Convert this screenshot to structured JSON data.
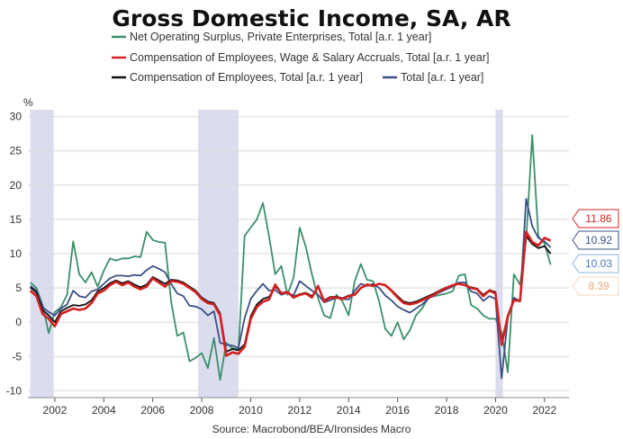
{
  "chart_data": {
    "type": "line",
    "title": "Gross Domestic Income, SA, AR",
    "ylabel": "%",
    "ylim": [
      -11,
      31
    ],
    "xlim": [
      2000.9,
      2023.0
    ],
    "yticks": [
      -10,
      -5,
      0,
      5,
      10,
      15,
      20,
      25,
      30
    ],
    "xticks": [
      2002,
      2004,
      2006,
      2008,
      2010,
      2012,
      2014,
      2016,
      2018,
      2020,
      2022
    ],
    "grid": true,
    "legend_position": "top",
    "source": "Source: Macrobond/BEA/Ironsides Macro",
    "recessions": [
      [
        2001.0,
        2001.95
      ],
      [
        2007.85,
        2009.5
      ],
      [
        2020.0,
        2020.3
      ]
    ],
    "series": [
      {
        "name": "Net Operating Surplus, Private Enterprises, Total [a.r. 1 year]",
        "color": "#3a8f6a",
        "last_value": "8.39",
        "x": [
          2001.0,
          2001.25,
          2001.5,
          2001.75,
          2002.0,
          2002.25,
          2002.5,
          2002.75,
          2003.0,
          2003.25,
          2003.5,
          2003.75,
          2004.0,
          2004.25,
          2004.5,
          2004.75,
          2005.0,
          2005.25,
          2005.5,
          2005.75,
          2006.0,
          2006.25,
          2006.5,
          2006.75,
          2007.0,
          2007.25,
          2007.5,
          2007.75,
          2008.0,
          2008.25,
          2008.5,
          2008.75,
          2009.0,
          2009.25,
          2009.5,
          2009.75,
          2010.0,
          2010.25,
          2010.5,
          2010.75,
          2011.0,
          2011.25,
          2011.5,
          2011.75,
          2012.0,
          2012.25,
          2012.5,
          2012.75,
          2013.0,
          2013.25,
          2013.5,
          2013.75,
          2014.0,
          2014.25,
          2014.5,
          2014.75,
          2015.0,
          2015.25,
          2015.5,
          2015.75,
          2016.0,
          2016.25,
          2016.5,
          2016.75,
          2017.0,
          2017.25,
          2017.5,
          2017.75,
          2018.0,
          2018.25,
          2018.5,
          2018.75,
          2019.0,
          2019.25,
          2019.5,
          2019.75,
          2020.0,
          2020.25,
          2020.5,
          2020.75,
          2021.0,
          2021.25,
          2021.5,
          2021.75,
          2022.0,
          2022.25
        ],
        "y": [
          5.8,
          5.0,
          2.5,
          -1.6,
          1.5,
          2.2,
          4.0,
          11.8,
          7.0,
          5.8,
          7.3,
          5.2,
          7.5,
          9.3,
          9.0,
          9.3,
          9.3,
          9.6,
          9.5,
          13.2,
          12.0,
          11.7,
          11.6,
          3.0,
          -2.0,
          -1.5,
          -5.7,
          -5.2,
          -4.5,
          -6.7,
          -2.3,
          -8.4,
          -3.0,
          -3.8,
          -4.0,
          12.6,
          13.8,
          15.0,
          17.4,
          12.5,
          7.0,
          8.2,
          4.0,
          6.5,
          13.8,
          11.0,
          7.0,
          3.5,
          1.0,
          0.6,
          4.0,
          3.0,
          1.0,
          6.0,
          8.5,
          6.2,
          6.0,
          3.0,
          -1.0,
          -2.0,
          0.0,
          -2.5,
          -1.2,
          1.0,
          2.0,
          3.5,
          3.8,
          4.0,
          4.2,
          4.5,
          6.8,
          7.0,
          2.5,
          2.0,
          1.0,
          0.5,
          0.5,
          -1.5,
          -7.3,
          7.0,
          5.5,
          12.0,
          27.3,
          12.5,
          11.5,
          8.4
        ]
      },
      {
        "name": "Compensation of Employees, Wage & Salary Accruals, Total [a.r. 1 year]",
        "color": "#d42020",
        "last_value": "11.86",
        "x": [
          2001.0,
          2001.25,
          2001.5,
          2001.75,
          2002.0,
          2002.25,
          2002.5,
          2002.75,
          2003.0,
          2003.25,
          2003.5,
          2003.75,
          2004.0,
          2004.25,
          2004.5,
          2004.75,
          2005.0,
          2005.25,
          2005.5,
          2005.75,
          2006.0,
          2006.25,
          2006.5,
          2006.75,
          2007.0,
          2007.25,
          2007.5,
          2007.75,
          2008.0,
          2008.25,
          2008.5,
          2008.75,
          2009.0,
          2009.25,
          2009.5,
          2009.75,
          2010.0,
          2010.25,
          2010.5,
          2010.75,
          2011.0,
          2011.25,
          2011.5,
          2011.75,
          2012.0,
          2012.25,
          2012.5,
          2012.75,
          2013.0,
          2013.25,
          2013.5,
          2013.75,
          2014.0,
          2014.25,
          2014.5,
          2014.75,
          2015.0,
          2015.25,
          2015.5,
          2015.75,
          2016.0,
          2016.25,
          2016.5,
          2016.75,
          2017.0,
          2017.25,
          2017.5,
          2017.75,
          2018.0,
          2018.25,
          2018.5,
          2018.75,
          2019.0,
          2019.25,
          2019.5,
          2019.75,
          2020.0,
          2020.25,
          2020.5,
          2020.75,
          2021.0,
          2021.25,
          2021.5,
          2021.75,
          2022.0,
          2022.25
        ],
        "y": [
          4.6,
          3.8,
          1.2,
          0.5,
          -0.6,
          1.2,
          1.6,
          2.0,
          1.8,
          2.0,
          2.8,
          4.2,
          4.6,
          5.4,
          5.9,
          5.4,
          5.8,
          5.2,
          4.8,
          5.2,
          6.4,
          5.8,
          5.2,
          6.0,
          5.9,
          5.6,
          5.0,
          4.4,
          3.4,
          2.8,
          2.6,
          1.0,
          -4.9,
          -4.4,
          -4.6,
          -3.6,
          0.5,
          2.2,
          3.0,
          3.3,
          5.5,
          4.2,
          4.4,
          3.6,
          4.0,
          4.2,
          3.6,
          5.3,
          3.0,
          3.6,
          3.6,
          3.4,
          3.8,
          4.0,
          5.0,
          5.5,
          5.3,
          5.6,
          5.4,
          4.6,
          3.6,
          2.8,
          2.6,
          2.8,
          3.2,
          3.6,
          4.0,
          4.6,
          5.0,
          5.4,
          5.6,
          5.4,
          5.0,
          4.8,
          3.8,
          4.6,
          4.2,
          -3.3,
          0.8,
          3.2,
          3.1,
          13.2,
          11.7,
          11.2,
          12.3,
          11.9
        ]
      },
      {
        "name": "Compensation of Employees, Total [a.r. 1 year]",
        "color": "#111111",
        "last_value": "10.03",
        "x": [
          2001.0,
          2001.25,
          2001.5,
          2001.75,
          2002.0,
          2002.25,
          2002.5,
          2002.75,
          2003.0,
          2003.25,
          2003.5,
          2003.75,
          2004.0,
          2004.25,
          2004.5,
          2004.75,
          2005.0,
          2005.25,
          2005.5,
          2005.75,
          2006.0,
          2006.25,
          2006.5,
          2006.75,
          2007.0,
          2007.25,
          2007.5,
          2007.75,
          2008.0,
          2008.25,
          2008.5,
          2008.75,
          2009.0,
          2009.25,
          2009.5,
          2009.75,
          2010.0,
          2010.25,
          2010.5,
          2010.75,
          2011.0,
          2011.25,
          2011.5,
          2011.75,
          2012.0,
          2012.25,
          2012.5,
          2012.75,
          2013.0,
          2013.25,
          2013.5,
          2013.75,
          2014.0,
          2014.25,
          2014.5,
          2014.75,
          2015.0,
          2015.25,
          2015.5,
          2015.75,
          2016.0,
          2016.25,
          2016.5,
          2016.75,
          2017.0,
          2017.25,
          2017.5,
          2017.75,
          2018.0,
          2018.25,
          2018.5,
          2018.75,
          2019.0,
          2019.25,
          2019.5,
          2019.75,
          2020.0,
          2020.25,
          2020.5,
          2020.75,
          2021.0,
          2021.25,
          2021.5,
          2021.75,
          2022.0,
          2022.25
        ],
        "y": [
          5.1,
          4.3,
          1.8,
          1.0,
          0.0,
          1.6,
          2.1,
          2.5,
          2.4,
          2.6,
          3.2,
          4.5,
          5.0,
          5.7,
          6.1,
          5.7,
          6.0,
          5.5,
          5.1,
          5.5,
          6.6,
          6.1,
          5.6,
          6.2,
          6.1,
          5.8,
          5.2,
          4.6,
          3.6,
          3.0,
          2.8,
          1.3,
          -4.3,
          -3.9,
          -4.1,
          -3.2,
          0.9,
          2.6,
          3.4,
          3.7,
          5.2,
          4.3,
          4.4,
          3.7,
          4.1,
          4.3,
          3.8,
          5.1,
          3.2,
          3.7,
          3.7,
          3.5,
          3.9,
          4.1,
          5.0,
          5.4,
          5.3,
          5.6,
          5.4,
          4.7,
          3.8,
          3.0,
          2.8,
          3.0,
          3.4,
          3.8,
          4.2,
          4.7,
          5.1,
          5.4,
          5.6,
          5.4,
          5.1,
          4.9,
          4.0,
          4.7,
          4.4,
          -2.9,
          1.0,
          3.3,
          3.2,
          12.6,
          11.4,
          10.8,
          11.1,
          10.0
        ]
      },
      {
        "name": "Total [a.r. 1 year]",
        "color": "#3a4f86",
        "last_value": "10.92",
        "x": [
          2001.0,
          2001.25,
          2001.5,
          2001.75,
          2002.0,
          2002.25,
          2002.5,
          2002.75,
          2003.0,
          2003.25,
          2003.5,
          2003.75,
          2004.0,
          2004.25,
          2004.5,
          2004.75,
          2005.0,
          2005.25,
          2005.5,
          2005.75,
          2006.0,
          2006.25,
          2006.5,
          2006.75,
          2007.0,
          2007.25,
          2007.5,
          2007.75,
          2008.0,
          2008.25,
          2008.5,
          2008.75,
          2009.0,
          2009.25,
          2009.5,
          2009.75,
          2010.0,
          2010.25,
          2010.5,
          2010.75,
          2011.0,
          2011.25,
          2011.5,
          2011.75,
          2012.0,
          2012.25,
          2012.5,
          2012.75,
          2013.0,
          2013.25,
          2013.5,
          2013.75,
          2014.0,
          2014.25,
          2014.5,
          2014.75,
          2015.0,
          2015.25,
          2015.5,
          2015.75,
          2016.0,
          2016.25,
          2016.5,
          2016.75,
          2017.0,
          2017.25,
          2017.5,
          2017.75,
          2018.0,
          2018.25,
          2018.5,
          2018.75,
          2019.0,
          2019.25,
          2019.5,
          2019.75,
          2020.0,
          2020.25,
          2020.5,
          2020.75,
          2021.0,
          2021.25,
          2021.5,
          2021.75,
          2022.0,
          2022.25
        ],
        "y": [
          5.3,
          4.6,
          2.2,
          1.5,
          1.0,
          2.0,
          2.6,
          4.6,
          3.8,
          3.6,
          4.5,
          4.8,
          5.6,
          6.4,
          6.8,
          6.8,
          6.7,
          6.9,
          6.8,
          7.6,
          8.2,
          7.8,
          7.3,
          5.6,
          4.2,
          3.8,
          2.4,
          2.3,
          1.9,
          1.0,
          1.6,
          -3.0,
          -3.3,
          -3.4,
          -3.8,
          0.6,
          3.4,
          4.6,
          5.6,
          4.6,
          4.7,
          4.0,
          4.3,
          3.9,
          6.0,
          5.3,
          4.6,
          4.0,
          2.9,
          3.2,
          3.6,
          3.4,
          3.3,
          4.6,
          5.6,
          5.3,
          5.6,
          5.0,
          3.9,
          3.2,
          2.3,
          1.8,
          1.4,
          2.0,
          2.6,
          3.4,
          4.0,
          4.4,
          4.8,
          5.2,
          5.8,
          5.8,
          4.5,
          4.2,
          3.1,
          3.8,
          3.4,
          -8.2,
          0.6,
          3.6,
          3.0,
          18.0,
          14.0,
          12.3,
          11.8,
          10.9
        ]
      }
    ]
  }
}
